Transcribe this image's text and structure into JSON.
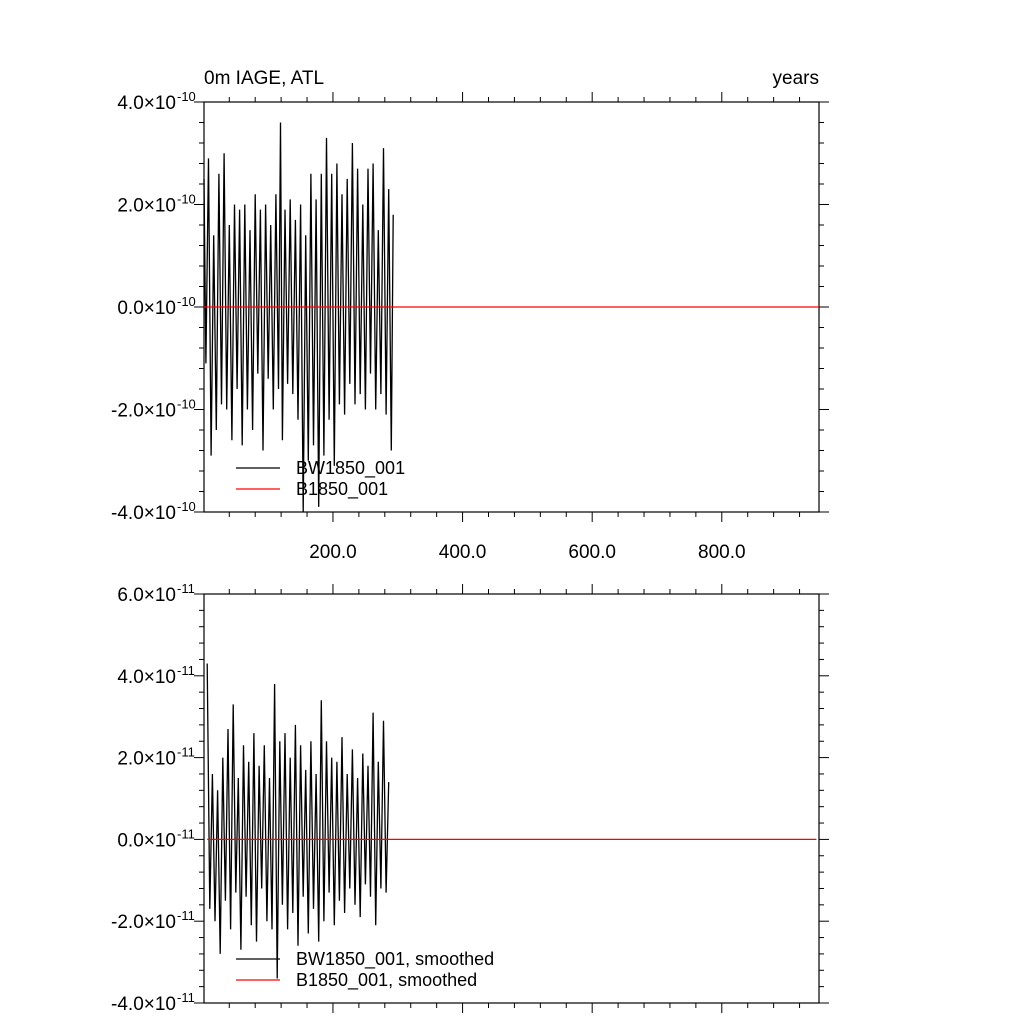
{
  "chart_data": [
    {
      "type": "line",
      "title_left": "0m IAGE, ATL",
      "title_right": "years",
      "xlim": [
        1,
        950
      ],
      "ylim": [
        -4e-10,
        4e-10
      ],
      "x_ticks": [
        200,
        400,
        600,
        800
      ],
      "x_tick_labels": [
        "200.0",
        "400.0",
        "600.0",
        "800.0"
      ],
      "y_ticks": [
        -4e-10,
        -2e-10,
        0.0,
        2e-10,
        4e-10
      ],
      "y_tick_labels": [
        {
          "mantissa": "-4.0",
          "exponent": "-10"
        },
        {
          "mantissa": "-2.0",
          "exponent": "-10"
        },
        {
          "mantissa": "0.0",
          "exponent": "-10"
        },
        {
          "mantissa": "2.0",
          "exponent": "-10"
        },
        {
          "mantissa": "4.0",
          "exponent": "-10"
        }
      ],
      "series": [
        {
          "name": "BW1850_001",
          "color": "#000000",
          "x": [
            1,
            4,
            8,
            12,
            16,
            20,
            24,
            28,
            32,
            36,
            40,
            44,
            48,
            52,
            56,
            60,
            64,
            68,
            72,
            76,
            80,
            84,
            88,
            92,
            96,
            100,
            104,
            108,
            112,
            116,
            119,
            122,
            126,
            130,
            134,
            138,
            142,
            146,
            150,
            154,
            158,
            162,
            166,
            170,
            174,
            178,
            182,
            186,
            190,
            194,
            198,
            202,
            206,
            210,
            214,
            218,
            222,
            226,
            230,
            234,
            238,
            242,
            246,
            250,
            254,
            258,
            262,
            266,
            270,
            274,
            278,
            282,
            286,
            290,
            293
          ],
          "values": [
            2.5e-10,
            -1.1e-10,
            2.9e-10,
            -2.9e-10,
            1.4e-10,
            -2.4e-10,
            2.6e-10,
            -1.9e-10,
            3e-10,
            -2e-10,
            1.6e-10,
            -2.6e-10,
            2e-10,
            -1.6e-10,
            1.9e-10,
            -2.7e-10,
            2e-10,
            -2e-10,
            1.5e-10,
            -2.4e-10,
            2.2e-10,
            -1.3e-10,
            1.9e-10,
            -2.8e-10,
            2e-10,
            -1.4e-10,
            1.6e-10,
            -2e-10,
            2.2e-10,
            -1.6e-10,
            3.6e-10,
            -2.6e-10,
            1.9e-10,
            -1.5e-10,
            2.1e-10,
            -1.7e-10,
            1.7e-10,
            -2.2e-10,
            2e-10,
            -4e-10,
            1.4e-10,
            -3e-10,
            2.6e-10,
            -2.7e-10,
            2.1e-10,
            -3.9e-10,
            2.6e-10,
            -2.9e-10,
            3.3e-10,
            -2.2e-10,
            2.6e-10,
            -3.1e-10,
            2.8e-10,
            -1.9e-10,
            2.2e-10,
            -2.1e-10,
            2.5e-10,
            -1.5e-10,
            3.2e-10,
            -1.9e-10,
            2.7e-10,
            -1.7e-10,
            2e-10,
            -2e-10,
            2.7e-10,
            -1.3e-10,
            2.8e-10,
            -2e-10,
            1.5e-10,
            -1.7e-10,
            3.1e-10,
            -2.1e-10,
            2.3e-10,
            -2.8e-10,
            1.8e-10
          ]
        },
        {
          "name": "B1850_001",
          "color": "#ff0000",
          "x": [
            1,
            950
          ],
          "values": [
            0.0,
            0.0
          ]
        }
      ],
      "legend_placement": "bottom-left",
      "grid": false
    },
    {
      "type": "line",
      "xlim": [
        1,
        950
      ],
      "ylim": [
        -4e-11,
        6e-11
      ],
      "y_ticks": [
        -4e-11,
        -2e-11,
        0.0,
        2e-11,
        4e-11,
        6e-11
      ],
      "y_tick_labels": [
        {
          "mantissa": "-4.0",
          "exponent": "-11"
        },
        {
          "mantissa": "-2.0",
          "exponent": "-11"
        },
        {
          "mantissa": "0.0",
          "exponent": "-11"
        },
        {
          "mantissa": "2.0",
          "exponent": "-11"
        },
        {
          "mantissa": "4.0",
          "exponent": "-11"
        },
        {
          "mantissa": "6.0",
          "exponent": "-11"
        }
      ],
      "series": [
        {
          "name": "BW1850_001, smoothed",
          "color": "#000000",
          "x": [
            6,
            10,
            14,
            18,
            22,
            26,
            30,
            34,
            38,
            42,
            46,
            50,
            54,
            58,
            62,
            66,
            70,
            74,
            78,
            82,
            86,
            90,
            94,
            98,
            102,
            106,
            110,
            114,
            118,
            122,
            126,
            130,
            134,
            138,
            142,
            146,
            150,
            154,
            158,
            162,
            166,
            170,
            174,
            178,
            182,
            186,
            190,
            194,
            198,
            202,
            206,
            210,
            214,
            218,
            222,
            226,
            230,
            234,
            238,
            242,
            246,
            250,
            254,
            258,
            262,
            266,
            270,
            274,
            278,
            282,
            286
          ],
          "values": [
            4.3e-11,
            -1.7e-11,
            1.6e-11,
            -2e-11,
            1.2e-11,
            -2.8e-11,
            2e-11,
            -1.5e-11,
            2.7e-11,
            -2.2e-11,
            3.3e-11,
            -1.3e-11,
            1.5e-11,
            -2.7e-11,
            2.3e-11,
            -1.4e-11,
            1.9e-11,
            -2.1e-11,
            2.6e-11,
            -2.5e-11,
            1.8e-11,
            -1.2e-11,
            2.3e-11,
            -2e-11,
            1.5e-11,
            -2.2e-11,
            3.8e-11,
            -3.4e-11,
            2.4e-11,
            -1.6e-11,
            2.6e-11,
            -2.2e-11,
            2e-11,
            -1.8e-11,
            2.8e-11,
            -2.6e-11,
            2.3e-11,
            -1.4e-11,
            1.7e-11,
            -2.3e-11,
            2.4e-11,
            -1.7e-11,
            1.6e-11,
            -2.5e-11,
            3.4e-11,
            -2e-11,
            2.4e-11,
            -1.3e-11,
            2e-11,
            -2.1e-11,
            1.9e-11,
            -1.5e-11,
            2.5e-11,
            -1.8e-11,
            1.6e-11,
            -1.2e-11,
            2.2e-11,
            -1.6e-11,
            1.5e-11,
            -1.9e-11,
            2.1e-11,
            -1.1e-11,
            1.8e-11,
            -1.4e-11,
            3.1e-11,
            -2.1e-11,
            1.9e-11,
            -1.2e-11,
            2.9e-11,
            -1.3e-11,
            1.4e-11
          ]
        },
        {
          "name": "B1850_001, smoothed",
          "color": "#ff0000",
          "x": [
            6,
            946
          ],
          "values": [
            0.0,
            0.0
          ]
        }
      ],
      "legend_placement": "bottom-left",
      "grid": false
    }
  ]
}
